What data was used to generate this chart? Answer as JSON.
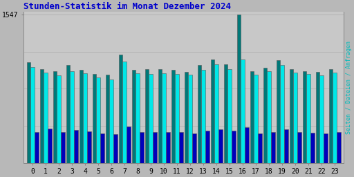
{
  "title": "Stunden-Statistik im Monat Dezember 2024",
  "title_color": "#0000cc",
  "background_color": "#b8b8b8",
  "plot_bg_color": "#c8c8c8",
  "ylabel_right": "Seiten / Dateien / Anfragen",
  "ylabel_right_color": "#00bbbb",
  "xlabel_labels": [
    "0",
    "1",
    "2",
    "3",
    "4",
    "5",
    "6",
    "7",
    "8",
    "9",
    "10",
    "11",
    "12",
    "13",
    "14",
    "15",
    "16",
    "17",
    "18",
    "19",
    "20",
    "21",
    "22",
    "23"
  ],
  "ytick_label": "1547",
  "ytick_value": 1547,
  "colors": [
    "#007878",
    "#00e8e8",
    "#0000bb"
  ],
  "bar_width": 0.3,
  "seiten": [
    1050,
    980,
    960,
    1020,
    970,
    930,
    920,
    1130,
    970,
    975,
    975,
    970,
    950,
    1020,
    1080,
    1030,
    1547,
    960,
    990,
    1070,
    980,
    960,
    950,
    980
  ],
  "dateien": [
    1000,
    940,
    910,
    960,
    935,
    890,
    870,
    1060,
    935,
    930,
    935,
    930,
    920,
    970,
    1030,
    980,
    1080,
    920,
    955,
    1020,
    945,
    930,
    915,
    940
  ],
  "anfragen": [
    320,
    355,
    320,
    340,
    330,
    305,
    300,
    380,
    320,
    320,
    325,
    325,
    310,
    335,
    350,
    335,
    370,
    310,
    325,
    350,
    325,
    315,
    305,
    320
  ]
}
